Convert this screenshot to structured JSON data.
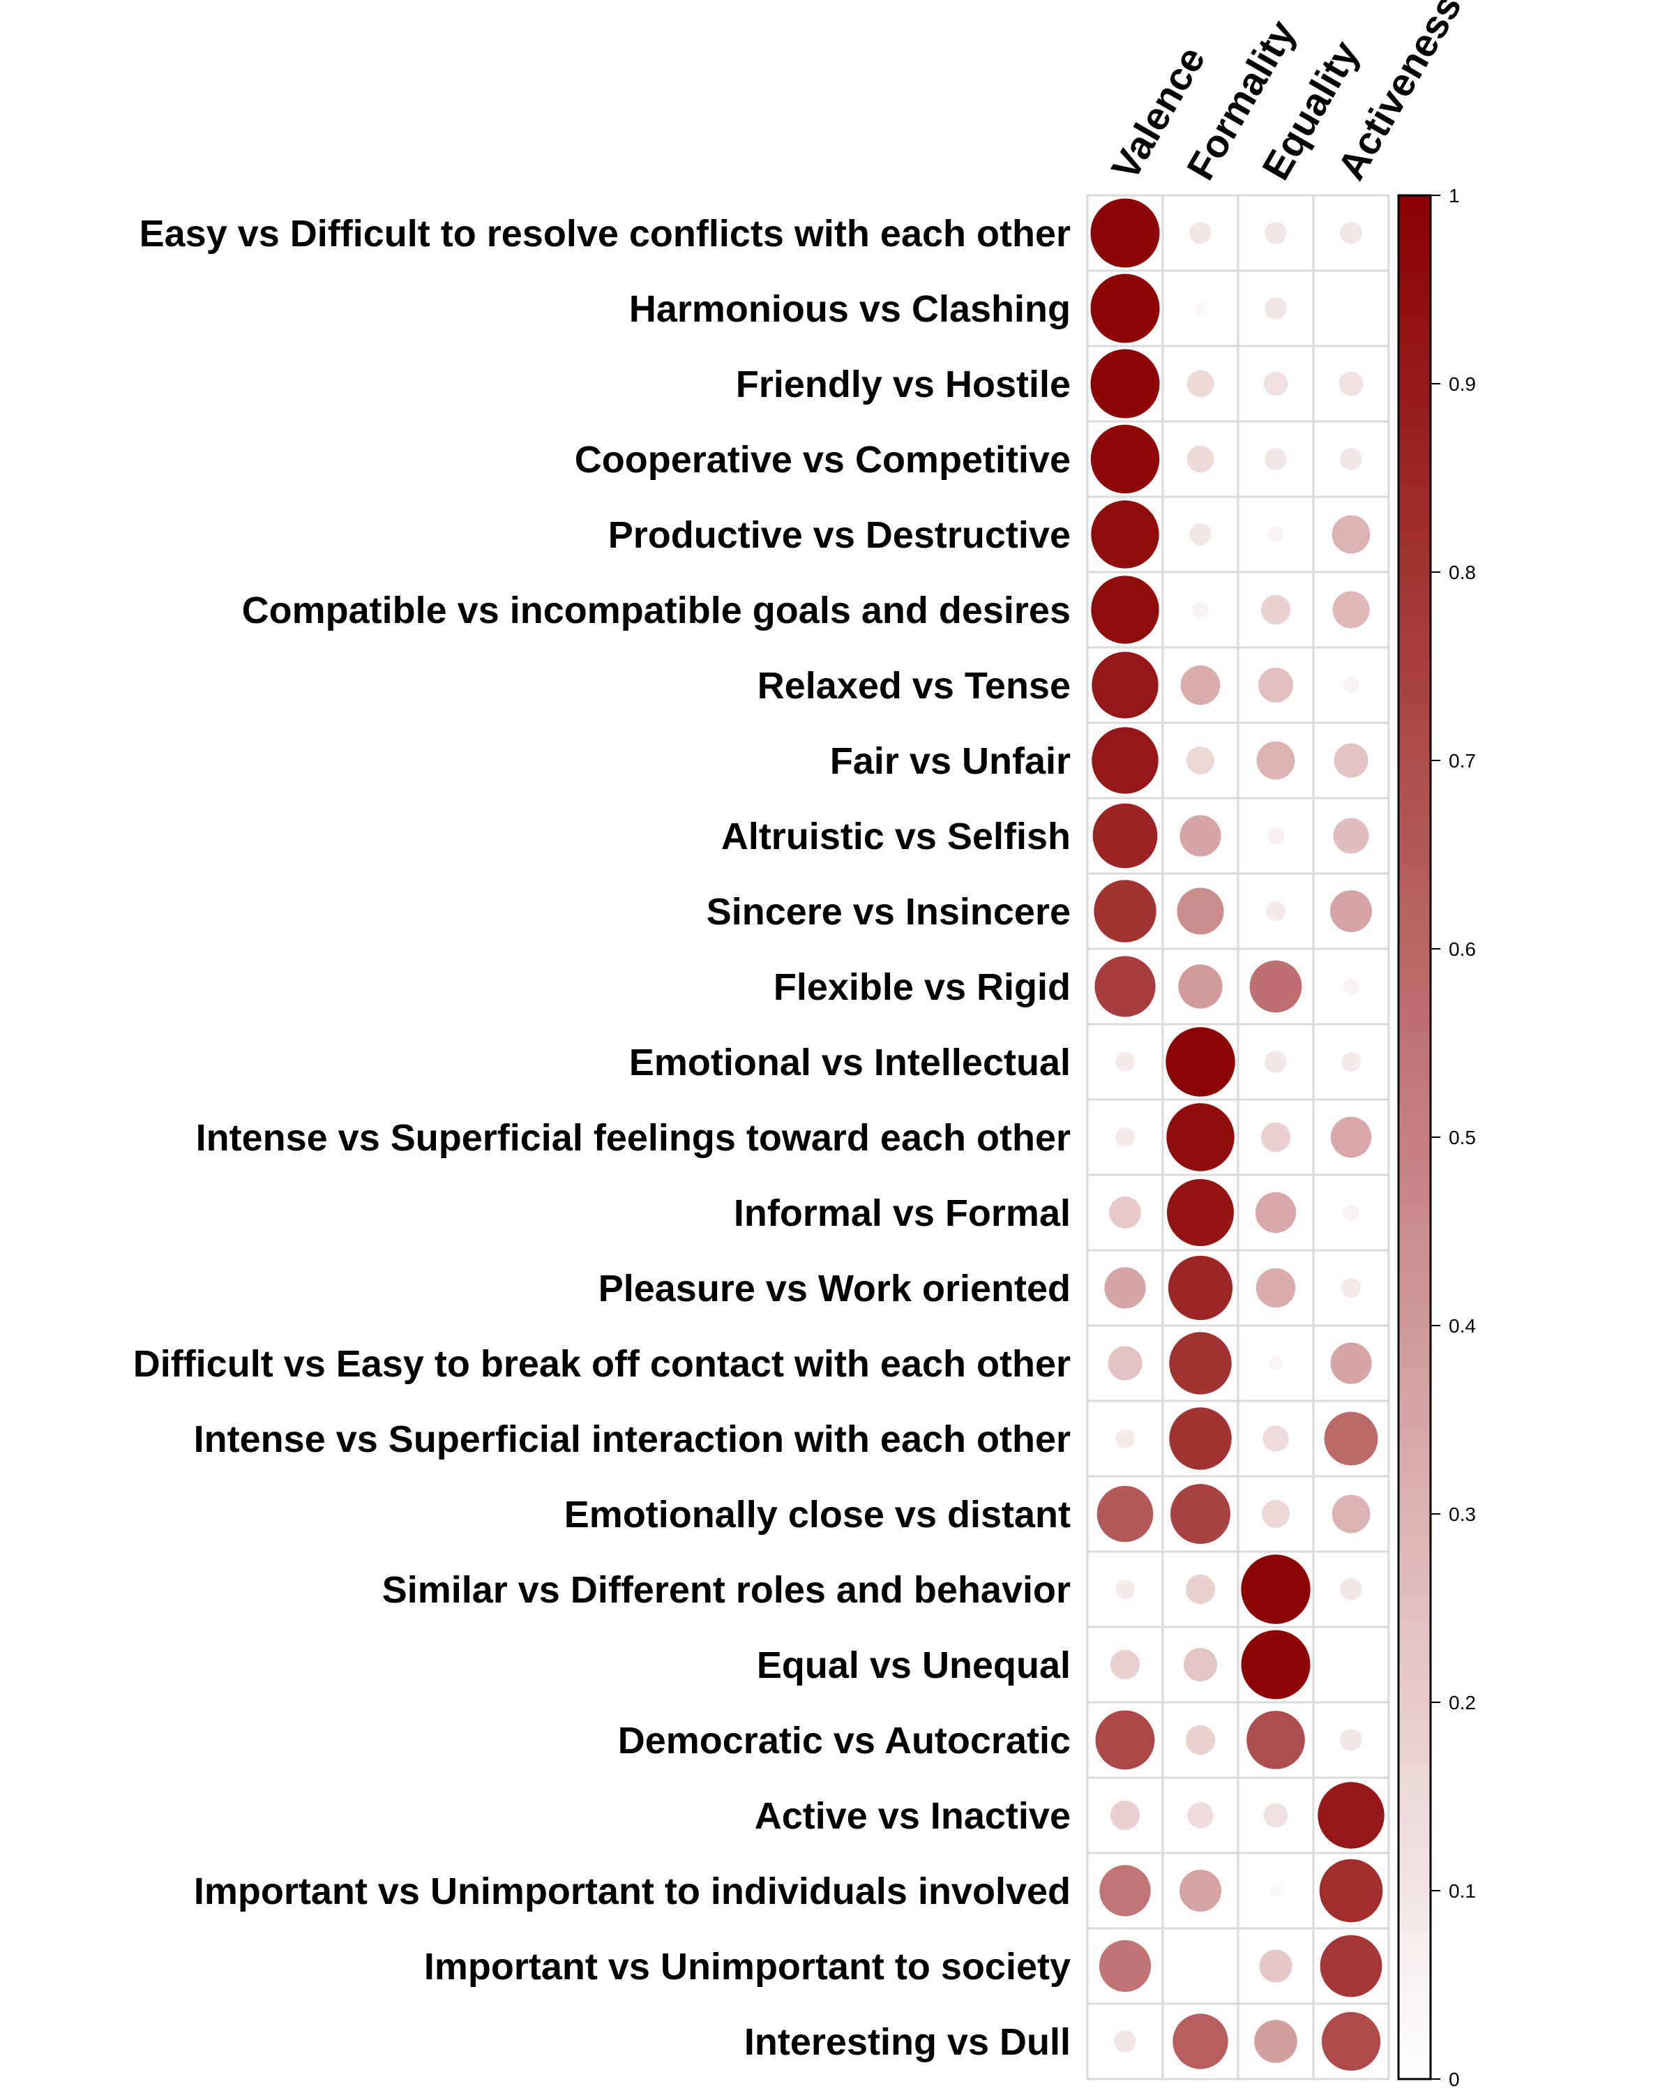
{
  "chart_data": {
    "type": "heatmap",
    "mark": "circle",
    "columns": [
      "Valence",
      "Formality",
      "Equality",
      "Activeness"
    ],
    "rows": [
      "Easy vs Difficult to resolve conflicts with each other",
      "Harmonious vs Clashing",
      "Friendly vs Hostile",
      "Cooperative vs Competitive",
      "Productive vs Destructive",
      "Compatible vs incompatible goals and desires",
      "Relaxed vs Tense",
      "Fair vs Unfair",
      "Altruistic vs Selfish",
      "Sincere vs Insincere",
      "Flexible vs Rigid",
      "Emotional vs Intellectual",
      "Intense vs Superficial feelings toward each other",
      "Informal vs Formal",
      "Pleasure vs Work oriented",
      "Difficult vs Easy to break off contact with each other",
      "Intense vs Superficial interaction with each other",
      "Emotionally close vs distant",
      "Similar vs Different roles and behavior",
      "Equal vs Unequal",
      "Democratic vs Autocratic",
      "Active vs Inactive",
      "Important vs Unimportant to individuals involved",
      "Important vs Unimportant to society",
      "Interesting vs Dull"
    ],
    "values": [
      [
        0.98,
        0.1,
        0.1,
        0.1
      ],
      [
        0.98,
        0.03,
        0.1,
        0.0
      ],
      [
        0.98,
        0.15,
        0.12,
        0.12
      ],
      [
        0.97,
        0.15,
        0.1,
        0.1
      ],
      [
        0.95,
        0.1,
        0.05,
        0.3
      ],
      [
        0.95,
        0.05,
        0.18,
        0.28
      ],
      [
        0.91,
        0.32,
        0.25,
        0.05
      ],
      [
        0.91,
        0.16,
        0.3,
        0.24
      ],
      [
        0.86,
        0.35,
        0.06,
        0.26
      ],
      [
        0.8,
        0.45,
        0.08,
        0.36
      ],
      [
        0.76,
        0.4,
        0.56,
        0.05
      ],
      [
        0.08,
        0.99,
        0.1,
        0.08
      ],
      [
        0.08,
        0.95,
        0.18,
        0.34
      ],
      [
        0.21,
        0.92,
        0.34,
        0.05
      ],
      [
        0.35,
        0.85,
        0.32,
        0.08
      ],
      [
        0.24,
        0.8,
        0.04,
        0.35
      ],
      [
        0.08,
        0.8,
        0.14,
        0.59
      ],
      [
        0.65,
        0.74,
        0.16,
        0.3
      ],
      [
        0.08,
        0.18,
        0.99,
        0.1
      ],
      [
        0.18,
        0.23,
        0.98,
        0.0
      ],
      [
        0.72,
        0.18,
        0.7,
        0.1
      ],
      [
        0.18,
        0.14,
        0.12,
        0.91
      ],
      [
        0.54,
        0.36,
        0.03,
        0.82
      ],
      [
        0.55,
        0.0,
        0.22,
        0.79
      ],
      [
        0.1,
        0.63,
        0.38,
        0.71
      ]
    ],
    "colorbar": {
      "ticks": [
        "0",
        "0.1",
        "0.2",
        "0.3",
        "0.4",
        "0.5",
        "0.6",
        "0.7",
        "0.8",
        "0.9",
        "1"
      ],
      "range": [
        0,
        1
      ],
      "color_low": "#ffffff",
      "color_high": "#8b0000"
    },
    "grid": true,
    "legend": "right colorbar"
  }
}
